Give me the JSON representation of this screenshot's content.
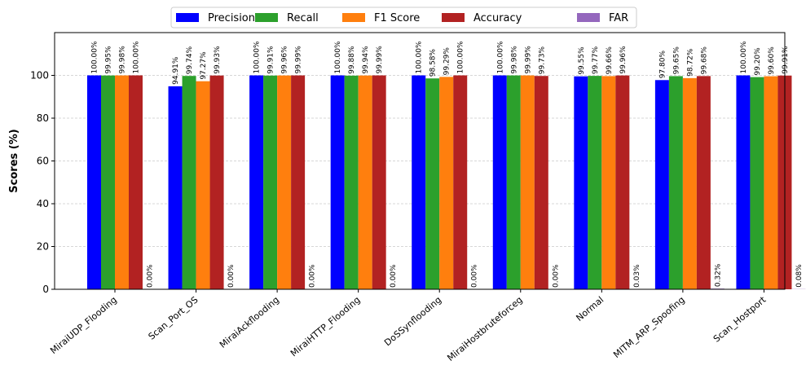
{
  "chart_data": {
    "type": "bar",
    "title": "",
    "xlabel": "",
    "ylabel": "Scores (%)",
    "ylim": [
      0,
      120
    ],
    "yticks": [
      0,
      20,
      40,
      60,
      80,
      100
    ],
    "grid": "horizontal-dashed",
    "legend_position": "top-center",
    "categories": [
      "MiraiUDP_Flooding",
      "Scan_Port_OS",
      "MiraiAckflooding",
      "MiraiHTTP_Flooding",
      "DoSSynflooding",
      "MiraiHostbruteforceg",
      "Normal",
      "MITM_ARP_Spoofing",
      "Scan_Hostport"
    ],
    "series": [
      {
        "name": "Precision",
        "color": "#0000ff",
        "values": [
          100.0,
          94.91,
          100.0,
          100.0,
          100.0,
          100.0,
          99.55,
          97.8,
          100.0
        ],
        "labels": [
          "100.00%",
          "94.91%",
          "100.00%",
          "100.00%",
          "100.00%",
          "100.00%",
          "99.55%",
          "97.80%",
          "100.00%"
        ]
      },
      {
        "name": "Recall",
        "color": "#2ca02c",
        "values": [
          99.95,
          99.74,
          99.91,
          99.88,
          98.58,
          99.98,
          99.77,
          99.65,
          99.2
        ],
        "labels": [
          "99.95%",
          "99.74%",
          "99.91%",
          "99.88%",
          "98.58%",
          "99.98%",
          "99.77%",
          "99.65%",
          "99.20%"
        ]
      },
      {
        "name": "F1 Score",
        "color": "#ff7f0e",
        "values": [
          99.98,
          97.27,
          99.96,
          99.94,
          99.29,
          99.99,
          99.66,
          98.72,
          99.6
        ],
        "labels": [
          "99.98%",
          "97.27%",
          "99.96%",
          "99.94%",
          "99.29%",
          "99.99%",
          "99.66%",
          "98.72%",
          "99.60%"
        ]
      },
      {
        "name": "Accuracy",
        "color": "#b22222",
        "values": [
          100.0,
          99.93,
          99.99,
          99.99,
          100.0,
          99.73,
          99.96,
          99.68,
          99.91
        ],
        "labels": [
          "100.00%",
          "99.93%",
          "99.99%",
          "99.99%",
          "100.00%",
          "99.73%",
          "99.96%",
          "99.68%",
          "99.91%"
        ]
      },
      {
        "name": "FAR",
        "color": "#9467bd",
        "values": [
          0.0,
          0.0,
          0.0,
          0.0,
          0.0,
          0.0,
          0.03,
          0.32,
          0.08
        ],
        "labels": [
          "0.00%",
          "0.00%",
          "0.00%",
          "0.00%",
          "0.00%",
          "0.00%",
          "0.03%",
          "0.32%",
          "0.08%"
        ]
      }
    ]
  }
}
